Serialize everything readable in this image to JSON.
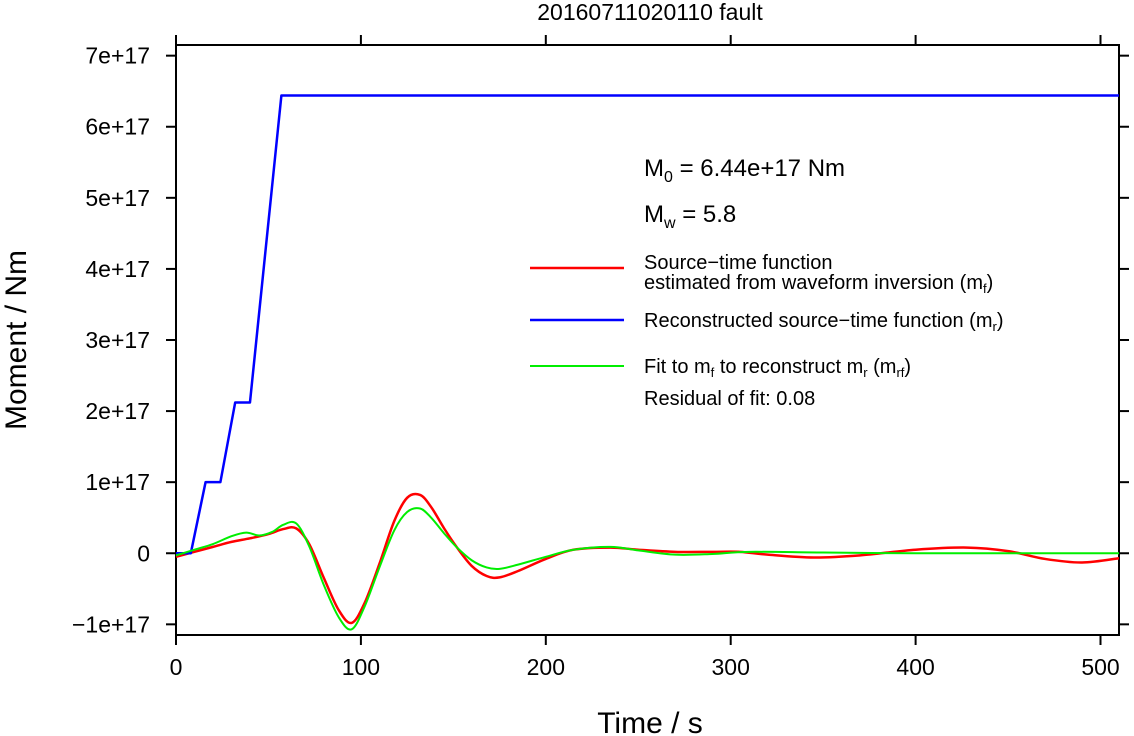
{
  "chart_data": {
    "type": "line",
    "title": "20160711020110 fault",
    "xlabel": "Time / s",
    "ylabel": "Moment / Nm",
    "xlim": [
      0,
      510
    ],
    "ylim": [
      -1.15e+17,
      7.15e+17
    ],
    "x_ticks": [
      {
        "value": 0,
        "label": "0"
      },
      {
        "value": 100,
        "label": "100"
      },
      {
        "value": 200,
        "label": "200"
      },
      {
        "value": 300,
        "label": "300"
      },
      {
        "value": 400,
        "label": "400"
      },
      {
        "value": 500,
        "label": "500"
      }
    ],
    "y_ticks": [
      {
        "value": -1e+17,
        "label": "−1e+17"
      },
      {
        "value": 0,
        "label": "0"
      },
      {
        "value": 1e+17,
        "label": "1e+17"
      },
      {
        "value": 2e+17,
        "label": "2e+17"
      },
      {
        "value": 3e+17,
        "label": "3e+17"
      },
      {
        "value": 4e+17,
        "label": "4e+17"
      },
      {
        "value": 5e+17,
        "label": "5e+17"
      },
      {
        "value": 6e+17,
        "label": "6e+17"
      },
      {
        "value": 7e+17,
        "label": "7e+17"
      }
    ],
    "annotations": {
      "m0": {
        "sym": "M",
        "sub": "0",
        "rest": " = 6.44e+17 Nm"
      },
      "mw": {
        "sym": "M",
        "sub": "w",
        "rest": " = 5.8"
      },
      "residual": "Residual of fit: 0.08"
    },
    "legend": {
      "placement": "upper-right",
      "entries": [
        {
          "line1": "Source−time function",
          "line2_main": "estimated from waveform inversion (m",
          "line2_sub": "f",
          "line2_end": ")",
          "color": "#ff0000"
        },
        {
          "line1_main": "Reconstructed source−time function (m",
          "line1_sub": "r",
          "line1_end": ")",
          "color": "#0000ff"
        },
        {
          "p1": "Fit to m",
          "s1": "f",
          "p2": " to reconstruct m",
          "s2": "r",
          "p3": " (m",
          "s3": "rf",
          "p4": ")",
          "color": "#00ee00"
        }
      ]
    },
    "series": [
      {
        "color": "#ff0000",
        "x": [
          0,
          10,
          20,
          30,
          40,
          50,
          58,
          65,
          72,
          80,
          88,
          95,
          102,
          110,
          118,
          125,
          132,
          138,
          145,
          152,
          160,
          168,
          175,
          185,
          200,
          215,
          235,
          250,
          270,
          290,
          305,
          320,
          345,
          370,
          400,
          428,
          450,
          470,
          490,
          510
        ],
        "y": [
          -5000000000000000.0,
          2000000000000000.0,
          9000000000000000.0,
          1.6e+16,
          2.1e+16,
          2.7e+16,
          3.4e+16,
          3.5e+16,
          1.3e+16,
          -3.5e+16,
          -8e+16,
          -9.8e+16,
          -7e+16,
          -1.5e+16,
          4.5e+16,
          7.8e+16,
          8.2e+16,
          6.5e+16,
          3.5e+16,
          8000000000000000.0,
          -1.8e+16,
          -3.2e+16,
          -3.4e+16,
          -2.5e+16,
          -8000000000000000.0,
          5000000000000000.0,
          8000000000000000.0,
          5000000000000000.0,
          2000000000000000.0,
          2000000000000000.0,
          2000000000000000.0,
          -2000000000000000.0,
          -6000000000000000.0,
          -3000000000000000.0,
          5000000000000000.0,
          8000000000000000.0,
          3000000000000000.0,
          -8000000000000000.0,
          -1.3e+16,
          -7000000000000000.0
        ]
      },
      {
        "color": "#0000ff",
        "x": [
          0,
          8,
          16,
          24,
          32,
          40,
          57,
          510
        ],
        "y": [
          0,
          0,
          1e+17,
          1e+17,
          2.12e+17,
          2.12e+17,
          6.44e+17,
          6.44e+17
        ]
      },
      {
        "color": "#00ee00",
        "x": [
          0,
          10,
          20,
          30,
          38,
          45,
          52,
          58,
          65,
          72,
          80,
          88,
          95,
          102,
          110,
          118,
          125,
          132,
          138,
          145,
          152,
          160,
          168,
          175,
          185,
          200,
          215,
          235,
          250,
          270,
          290,
          310,
          350,
          400,
          450,
          510
        ],
        "y": [
          -3000000000000000.0,
          5000000000000000.0,
          1.3e+16,
          2.4e+16,
          2.9e+16,
          2.5e+16,
          3e+16,
          4e+16,
          4.2e+16,
          1e+16,
          -4.5e+16,
          -9e+16,
          -1.07e+17,
          -7.5e+16,
          -2e+16,
          3.2e+16,
          5.8e+16,
          6.3e+16,
          5e+16,
          2.8e+16,
          8000000000000000.0,
          -1e+16,
          -2e+16,
          -2.2e+16,
          -1.6e+16,
          -5000000000000000.0,
          5000000000000000.0,
          9000000000000000.0,
          4000000000000000.0,
          -2000000000000000.0,
          -1000000000000000.0,
          2000000000000000.0,
          1000000000000000.0,
          0.0,
          0.0,
          0.0
        ]
      }
    ]
  }
}
